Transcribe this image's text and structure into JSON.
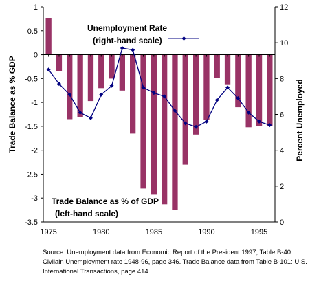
{
  "chart_data": {
    "type": "bar",
    "x": [
      1975,
      1976,
      1977,
      1978,
      1979,
      1980,
      1981,
      1982,
      1983,
      1984,
      1985,
      1986,
      1987,
      1988,
      1989,
      1990,
      1991,
      1992,
      1993,
      1994,
      1995,
      1996
    ],
    "series": [
      {
        "name": "Trade Balance as % of GDP",
        "axis": "left",
        "type": "bar",
        "color": "#993366",
        "values": [
          0.77,
          -0.35,
          -1.35,
          -1.3,
          -0.97,
          -0.7,
          -0.5,
          -0.75,
          -1.65,
          -2.8,
          -2.93,
          -3.13,
          -3.25,
          -2.3,
          -1.67,
          -1.37,
          -0.48,
          -0.62,
          -1.1,
          -1.52,
          -1.5,
          -1.5
        ]
      },
      {
        "name": "Unemployment Rate",
        "axis": "right",
        "type": "line",
        "color": "#000080",
        "values": [
          8.5,
          7.7,
          7.1,
          6.1,
          5.8,
          7.1,
          7.6,
          9.7,
          9.6,
          7.5,
          7.2,
          7.0,
          6.2,
          5.5,
          5.3,
          5.6,
          6.8,
          7.5,
          6.9,
          6.1,
          5.6,
          5.4
        ]
      }
    ],
    "ylabel": "Trade Balance as % GDP",
    "y2label": "Percent  Unemployed",
    "ylim": [
      -3.5,
      1
    ],
    "y2lim": [
      0,
      12
    ],
    "yticks": [
      "1",
      "0.5",
      "0",
      "-0.5",
      "-1",
      "-1.5",
      "-2",
      "-2.5",
      "-3",
      "-3.5"
    ],
    "y2ticks": [
      "12",
      "10",
      "8",
      "6",
      "4",
      "2",
      "0"
    ],
    "xticks": [
      "1975",
      "1980",
      "1985",
      "1990",
      "1995"
    ],
    "annotations": {
      "unemployment_line1": "Unemployment Rate",
      "unemployment_line2": "(right-hand scale)",
      "trade_line1": "Trade Balance as % of GDP",
      "trade_line2": "(left-hand scale)"
    },
    "grid": false,
    "legend": "none"
  },
  "source": "Source:  Unemployment data from  Economic Report of the President 1997, Table B-40: Civilain Unemployment rate 1948-96,  page 346.    Trade Balance data from Table B-101:  U.S. International Transactions, page  414."
}
